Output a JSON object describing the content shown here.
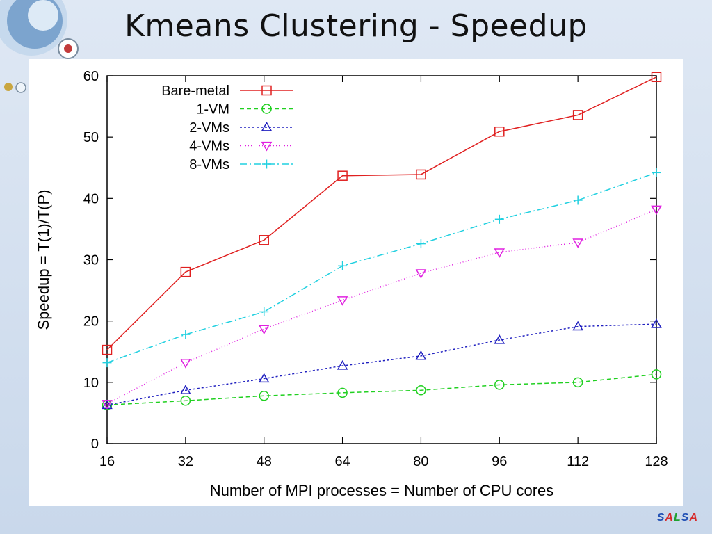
{
  "slide": {
    "title": "Kmeans Clustering - Speedup",
    "brand": {
      "letters": [
        "S",
        "A",
        "L",
        "S",
        "A"
      ],
      "colors": [
        "#1f4fb4",
        "#d62a2a",
        "#1fa02f",
        "#1f4fb4",
        "#d62a2a"
      ]
    }
  },
  "chart_data": {
    "type": "line",
    "xlabel": "Number of MPI processes = Number of CPU cores",
    "ylabel": "Speedup = T(1)/T(P)",
    "xlim": [
      16,
      128
    ],
    "ylim": [
      0,
      60
    ],
    "x_ticks": [
      16,
      32,
      48,
      64,
      80,
      96,
      112,
      128
    ],
    "y_ticks": [
      0,
      10,
      20,
      30,
      40,
      50,
      60
    ],
    "x": [
      16,
      32,
      48,
      64,
      80,
      96,
      112,
      128
    ],
    "legend_position": "top-left",
    "grid": false,
    "series": [
      {
        "name": "Bare-metal",
        "values": [
          15.3,
          28.0,
          33.2,
          43.7,
          43.9,
          50.9,
          53.6,
          59.8
        ],
        "color": "#e02020",
        "marker": "square",
        "dash": ""
      },
      {
        "name": "1-VM",
        "values": [
          6.3,
          7.0,
          7.8,
          8.3,
          8.7,
          9.6,
          10.0,
          11.3
        ],
        "color": "#20d020",
        "marker": "circle",
        "dash": "6,4"
      },
      {
        "name": "2-VMs",
        "values": [
          6.3,
          8.7,
          10.6,
          12.7,
          14.3,
          16.9,
          19.1,
          19.5
        ],
        "color": "#2020c0",
        "marker": "triangle-up",
        "dash": "3,3"
      },
      {
        "name": "4-VMs",
        "values": [
          6.5,
          13.2,
          18.7,
          23.4,
          27.8,
          31.2,
          32.8,
          38.2
        ],
        "color": "#e020e0",
        "marker": "triangle-down",
        "dash": "1,3"
      },
      {
        "name": "8-VMs",
        "values": [
          13.2,
          17.8,
          21.5,
          29.0,
          32.6,
          36.6,
          39.7,
          44.2
        ],
        "color": "#20d0e0",
        "marker": "plus",
        "dash": "10,4,2,4"
      }
    ]
  }
}
